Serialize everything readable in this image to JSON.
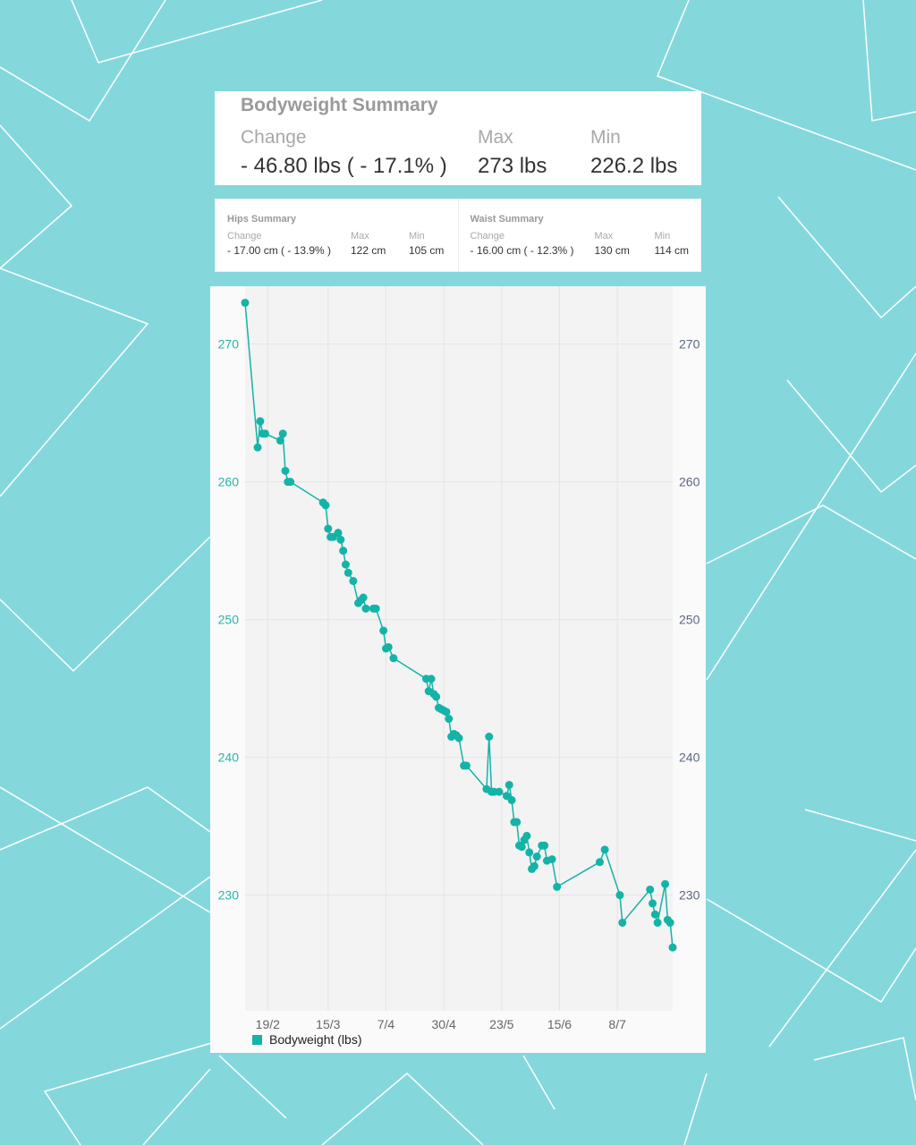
{
  "colors": {
    "background": "#84d8dc",
    "series": "#14b3a7",
    "left_axis": "#26b5ab",
    "right_axis": "#5c6785"
  },
  "bodyweight_summary": {
    "title": "Bodyweight Summary",
    "change_label": "Change",
    "change_value": "- 46.80 lbs ( - 17.1% )",
    "max_label": "Max",
    "max_value": "273 lbs",
    "min_label": "Min",
    "min_value": "226.2 lbs"
  },
  "hips_summary": {
    "title": "Hips Summary",
    "change_label": "Change",
    "change_value": "- 17.00 cm ( - 13.9% )",
    "max_label": "Max",
    "max_value": "122 cm",
    "min_label": "Min",
    "min_value": "105 cm"
  },
  "waist_summary": {
    "title": "Waist Summary",
    "change_label": "Change",
    "change_value": "- 16.00 cm ( - 12.3% )",
    "max_label": "Max",
    "max_value": "130 cm",
    "min_label": "Min",
    "min_value": "114 cm"
  },
  "chart_data": {
    "type": "line",
    "title": "",
    "xlabel": "",
    "ylabel": "",
    "x_ticks": [
      "19/2",
      "15/3",
      "7/4",
      "30/4",
      "23/5",
      "15/6",
      "8/7"
    ],
    "y_ticks": [
      230,
      240,
      250,
      260,
      270
    ],
    "ylim": [
      221.6,
      274.2
    ],
    "xlim": [
      "10/2",
      "30/7"
    ],
    "grid": true,
    "legend": "bottom-left",
    "dual_y_axis": true,
    "series": [
      {
        "name": "Bodyweight (lbs)",
        "x": [
          "10/2",
          "15/2",
          "16/2",
          "17/2",
          "18/2",
          "24/2",
          "25/2",
          "26/2",
          "27/2",
          "28/2",
          "13/3",
          "14/3",
          "15/3",
          "16/3",
          "17/3",
          "19/3",
          "20/3",
          "21/3",
          "22/3",
          "23/3",
          "25/3",
          "27/3",
          "28/3",
          "29/3",
          "30/3",
          "2/4",
          "3/4",
          "6/4",
          "7/4",
          "8/4",
          "10/4",
          "23/4",
          "24/4",
          "25/4",
          "26/4",
          "27/4",
          "28/4",
          "29/4",
          "30/4",
          "1/5",
          "2/5",
          "3/5",
          "4/5",
          "5/5",
          "6/5",
          "8/5",
          "9/5",
          "17/5",
          "18/5",
          "19/5",
          "20/5",
          "22/5",
          "25/5",
          "26/5",
          "27/5",
          "28/5",
          "29/5",
          "30/5",
          "31/5",
          "1/6",
          "2/6",
          "3/6",
          "4/6",
          "5/6",
          "6/6",
          "8/6",
          "9/6",
          "10/6",
          "12/6",
          "14/6",
          "1/7",
          "3/7",
          "9/7",
          "10/7",
          "21/7",
          "22/7",
          "23/7",
          "24/7",
          "27/7",
          "28/7",
          "29/7",
          "30/7"
        ],
        "values": [
          273.0,
          262.5,
          264.4,
          263.5,
          263.5,
          263.0,
          263.5,
          260.8,
          260.0,
          260.0,
          258.5,
          258.3,
          256.6,
          256.0,
          256.0,
          256.3,
          255.8,
          255.0,
          254.0,
          253.4,
          252.8,
          251.2,
          251.4,
          251.6,
          250.8,
          250.8,
          250.8,
          249.2,
          247.9,
          248.0,
          247.2,
          245.7,
          244.8,
          245.7,
          244.6,
          244.4,
          243.6,
          243.5,
          243.4,
          243.3,
          242.8,
          241.5,
          241.7,
          241.6,
          241.4,
          239.4,
          239.4,
          237.7,
          241.5,
          237.5,
          237.5,
          237.5,
          237.2,
          238.0,
          236.9,
          235.3,
          235.3,
          233.6,
          233.5,
          234.0,
          234.3,
          233.1,
          231.9,
          232.1,
          232.8,
          233.6,
          233.6,
          232.5,
          232.6,
          230.6,
          232.4,
          233.3,
          230.0,
          228.0,
          230.4,
          229.4,
          228.6,
          228.0,
          230.8,
          228.2,
          228.0,
          226.2
        ]
      }
    ]
  }
}
